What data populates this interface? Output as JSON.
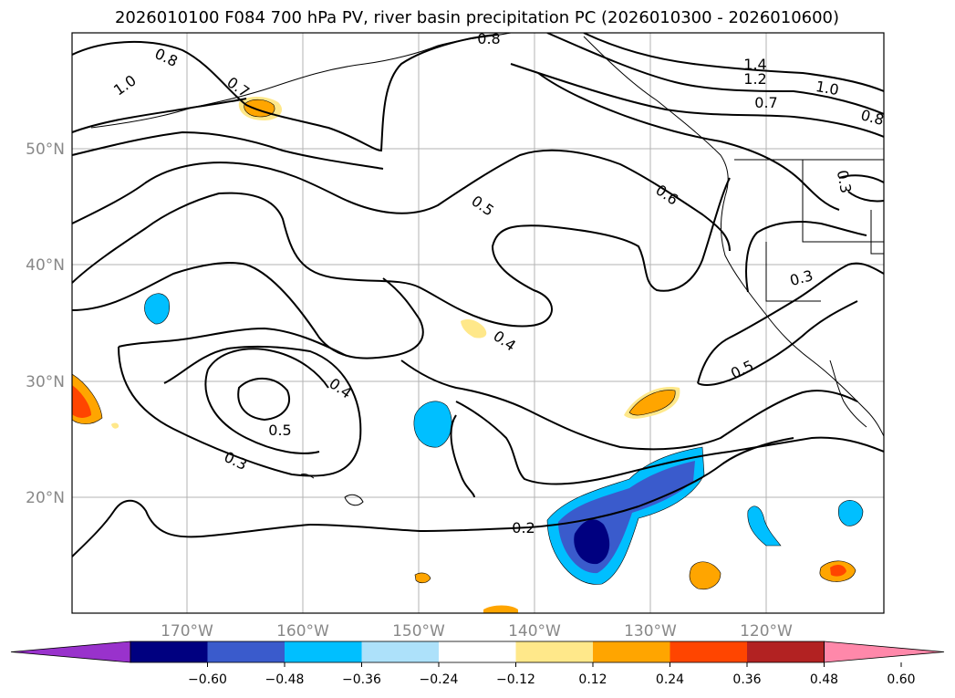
{
  "title": "2026010100 F084 700 hPa PV, river basin precipitation PC (2026010300 - 2026010600)",
  "map": {
    "lat_labels": [
      "50°N",
      "40°N",
      "30°N",
      "20°N"
    ],
    "lon_labels": [
      "170°W",
      "160°W",
      "150°W",
      "140°W",
      "130°W",
      "120°W"
    ],
    "contour_labels": [
      "0.8",
      "1.0",
      "0.7",
      "0.8",
      "1.4",
      "1.2",
      "1.0",
      "0.7",
      "0.8",
      "0.5",
      "0.6",
      "0.3",
      "0.3",
      "0.4",
      "0.4",
      "0.5",
      "0.3",
      "0.5",
      "0.2"
    ],
    "colors": {
      "contour": "#000000",
      "grid": "#b3b3b3",
      "coast": "#000000"
    }
  },
  "colorbar": {
    "ticks": [
      "−0.60",
      "−0.48",
      "−0.36",
      "−0.24",
      "−0.12",
      "0.12",
      "0.24",
      "0.36",
      "0.48",
      "0.60"
    ],
    "colors": [
      "#9932CC",
      "#000080",
      "#3A5BCC",
      "#00BFFF",
      "#ADE1FA",
      "#FFFFFF",
      "#FFE88A",
      "#FFA500",
      "#FF4500",
      "#B22222",
      "#FF88AA"
    ]
  }
}
